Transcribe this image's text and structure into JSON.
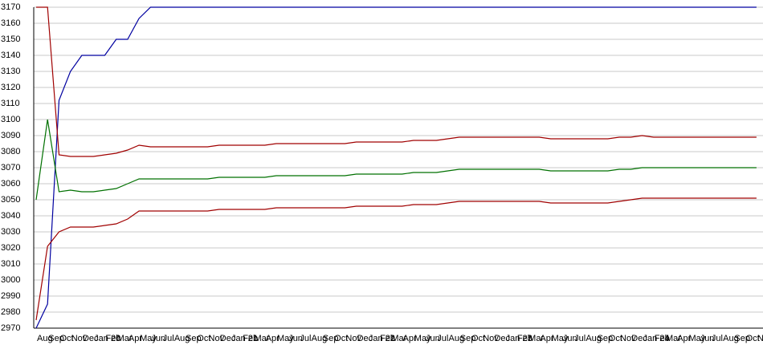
{
  "chart_data": {
    "type": "line",
    "categories": [
      "Aug",
      "Sep",
      "Oct",
      "Nov",
      "Dec",
      "Jan 20",
      "Feb",
      "Mar",
      "Apr",
      "May",
      "Jun",
      "Jul",
      "Aug",
      "Sep",
      "Oct",
      "Nov",
      "Dec",
      "Jan 21",
      "Feb",
      "Mar",
      "Apr",
      "May",
      "Jun",
      "Jul",
      "Aug",
      "Sep",
      "Oct",
      "Nov",
      "Dec",
      "Jan 22",
      "Feb",
      "Mar",
      "Apr",
      "May",
      "Jun",
      "Jul",
      "Aug",
      "Sep",
      "Oct",
      "Nov",
      "Dec",
      "Jan 23",
      "Feb",
      "Mar",
      "Apr",
      "May",
      "Jun",
      "Jul",
      "Aug",
      "Sep",
      "Oct",
      "Nov",
      "Dec",
      "Jan 24",
      "Feb",
      "Mar",
      "Apr",
      "May",
      "Jun",
      "Jul",
      "Aug",
      "Sep",
      "Oct",
      "Nov"
    ],
    "series": [
      {
        "color": "#0000a0",
        "values": [
          2970,
          2985,
          3112,
          3130,
          3140,
          3140,
          3140,
          3150,
          3150,
          3163,
          3170,
          3170,
          3170,
          3170,
          3170,
          3170,
          3170,
          3170,
          3170,
          3170,
          3170,
          3170,
          3170,
          3170,
          3170,
          3170,
          3170,
          3170,
          3170,
          3170,
          3170,
          3170,
          3170,
          3170,
          3170,
          3170,
          3170,
          3170,
          3170,
          3170,
          3170,
          3170,
          3170,
          3170,
          3170,
          3170,
          3170,
          3170,
          3170,
          3170,
          3170,
          3170,
          3170,
          3170,
          3170,
          3170,
          3170,
          3170,
          3170,
          3170,
          3170,
          3170,
          3170,
          3170
        ]
      },
      {
        "color": "#a00000",
        "values": [
          3170,
          3170,
          3078,
          3077,
          3077,
          3077,
          3078,
          3079,
          3081,
          3084,
          3083,
          3083,
          3083,
          3083,
          3083,
          3083,
          3084,
          3084,
          3084,
          3084,
          3084,
          3085,
          3085,
          3085,
          3085,
          3085,
          3085,
          3085,
          3086,
          3086,
          3086,
          3086,
          3086,
          3087,
          3087,
          3087,
          3088,
          3089,
          3089,
          3089,
          3089,
          3089,
          3089,
          3089,
          3089,
          3088,
          3088,
          3088,
          3088,
          3088,
          3088,
          3089,
          3089,
          3090,
          3089,
          3089,
          3089,
          3089,
          3089,
          3089,
          3089,
          3089,
          3089,
          3089
        ]
      },
      {
        "color": "#007000",
        "values": [
          3050,
          3100,
          3055,
          3056,
          3055,
          3055,
          3056,
          3057,
          3060,
          3063,
          3063,
          3063,
          3063,
          3063,
          3063,
          3063,
          3064,
          3064,
          3064,
          3064,
          3064,
          3065,
          3065,
          3065,
          3065,
          3065,
          3065,
          3065,
          3066,
          3066,
          3066,
          3066,
          3066,
          3067,
          3067,
          3067,
          3068,
          3069,
          3069,
          3069,
          3069,
          3069,
          3069,
          3069,
          3069,
          3068,
          3068,
          3068,
          3068,
          3068,
          3068,
          3069,
          3069,
          3070,
          3070,
          3070,
          3070,
          3070,
          3070,
          3070,
          3070,
          3070,
          3070,
          3070
        ]
      },
      {
        "color": "#a00000",
        "values": [
          2975,
          3021,
          3030,
          3033,
          3033,
          3033,
          3034,
          3035,
          3038,
          3043,
          3043,
          3043,
          3043,
          3043,
          3043,
          3043,
          3044,
          3044,
          3044,
          3044,
          3044,
          3045,
          3045,
          3045,
          3045,
          3045,
          3045,
          3045,
          3046,
          3046,
          3046,
          3046,
          3046,
          3047,
          3047,
          3047,
          3048,
          3049,
          3049,
          3049,
          3049,
          3049,
          3049,
          3049,
          3049,
          3048,
          3048,
          3048,
          3048,
          3048,
          3048,
          3049,
          3050,
          3051,
          3051,
          3051,
          3051,
          3051,
          3051,
          3051,
          3051,
          3051,
          3051,
          3051
        ]
      }
    ],
    "ylim": [
      2970,
      3170
    ],
    "yticks": [
      2970,
      2980,
      2990,
      3000,
      3010,
      3020,
      3030,
      3040,
      3050,
      3060,
      3070,
      3080,
      3090,
      3100,
      3110,
      3120,
      3130,
      3140,
      3150,
      3160,
      3170
    ],
    "grid": true
  }
}
